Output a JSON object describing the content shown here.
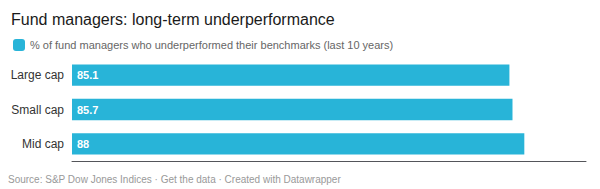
{
  "chart_data": {
    "type": "bar",
    "orientation": "horizontal",
    "title": "Fund managers: long-term underperformance",
    "categories": [
      "Large cap",
      "Small cap",
      "Mid cap"
    ],
    "series": [
      {
        "name": "% of fund managers who underperformed their benchmarks (last 10 years)",
        "color": "#28b4d8",
        "values": [
          85.1,
          85.7,
          88
        ]
      }
    ],
    "xlim": [
      0,
      100
    ],
    "data_labels": true,
    "tick_labels": "y",
    "grid": false,
    "legend": "upper left",
    "annotations": [
      "Source: S&P Dow Jones Indices · Get the data · Created with Datawrapper"
    ]
  }
}
